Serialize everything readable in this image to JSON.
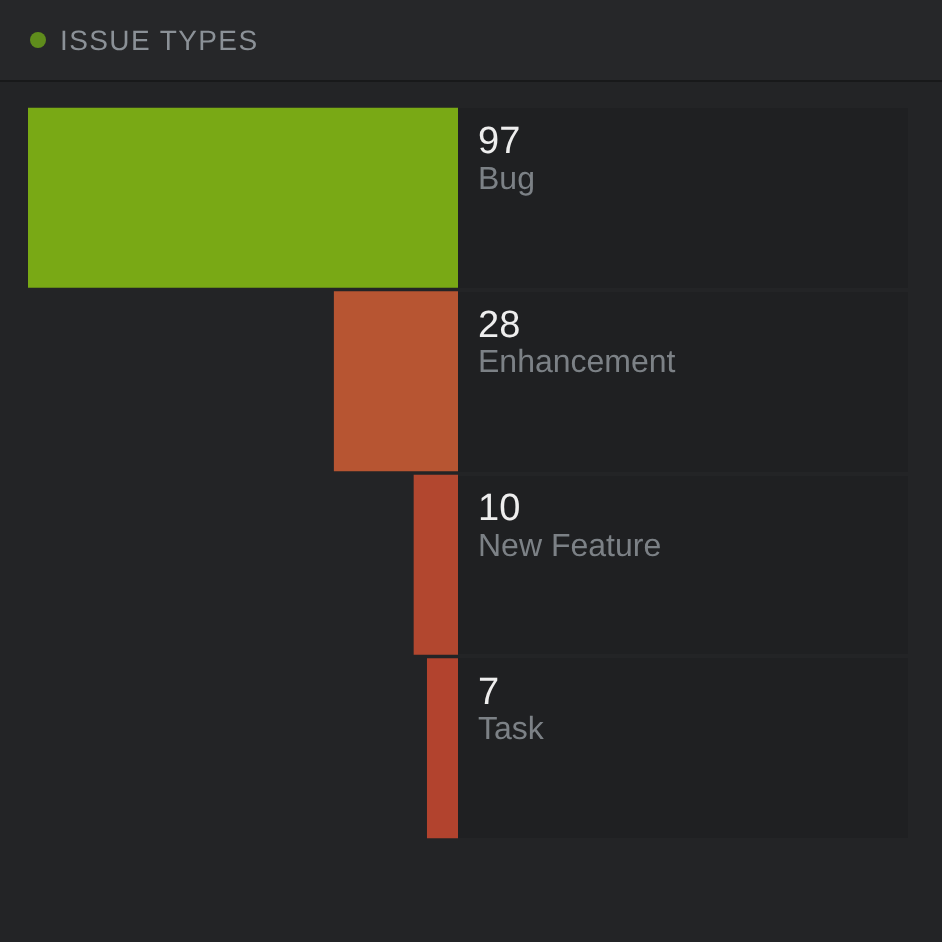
{
  "chart_data": {
    "type": "bar",
    "orientation": "horizontal",
    "title": "ISSUE TYPES",
    "categories": [
      "Bug",
      "Enhancement",
      "New Feature",
      "Task"
    ],
    "values": [
      97,
      28,
      10,
      7
    ],
    "colors": [
      "#79a915",
      "#b75532",
      "#b2472f",
      "#b2432e"
    ],
    "xlim": [
      97,
      0
    ],
    "data_labels": true,
    "legend": false,
    "tick_labels": false
  }
}
